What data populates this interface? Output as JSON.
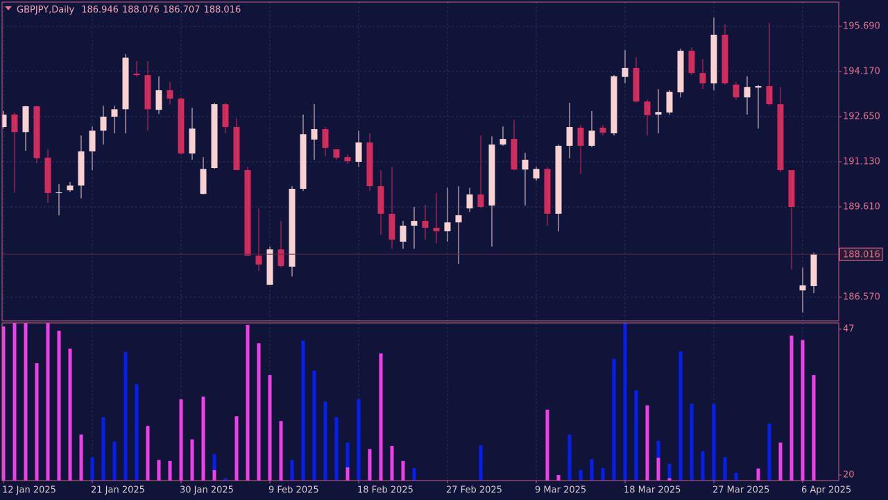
{
  "chart_data": [
    {
      "type": "candlestick",
      "title": "GBPJPY,Daily",
      "categories": [
        "12 Jan 2025",
        null,
        null,
        null,
        null,
        null,
        null,
        null,
        "21 Jan 2025",
        null,
        null,
        null,
        null,
        null,
        null,
        null,
        "30 Jan 2025",
        null,
        null,
        null,
        null,
        null,
        null,
        null,
        "9 Feb 2025",
        null,
        null,
        null,
        null,
        null,
        null,
        null,
        "18 Feb 2025",
        null,
        null,
        null,
        null,
        null,
        null,
        null,
        "27 Feb 2025",
        null,
        null,
        null,
        null,
        null,
        null,
        null,
        "9 Mar 2025",
        null,
        null,
        null,
        null,
        null,
        null,
        null,
        "18 Mar 2025",
        null,
        null,
        null,
        null,
        null,
        null,
        null,
        "27 Mar 2025",
        null,
        null,
        null,
        null,
        null,
        null,
        null,
        "6 Apr 2025",
        null
      ],
      "open": [
        192.3,
        192.72,
        192.13,
        193.0,
        191.27,
        190.08,
        190.17,
        190.33,
        191.48,
        192.18,
        192.65,
        192.9,
        194.1,
        194.05,
        192.88,
        193.54,
        193.26,
        191.41,
        190.05,
        190.92,
        193.07,
        192.3,
        190.85,
        187.97,
        186.99,
        188.18,
        187.6,
        190.22,
        191.88,
        192.23,
        191.55,
        191.29,
        191.13,
        191.78,
        190.31,
        189.38,
        188.44,
        188.98,
        189.14,
        188.91,
        188.79,
        189.09,
        189.56,
        190.03,
        189.66,
        191.71,
        191.9,
        190.87,
        190.57,
        190.89,
        189.38,
        191.67,
        192.28,
        191.67,
        192.28,
        192.09,
        193.99,
        194.29,
        193.16,
        192.72,
        192.79,
        193.47,
        194.87,
        194.12,
        193.77,
        195.41,
        193.73,
        193.3,
        193.63,
        193.68,
        193.07,
        190.85,
        186.8,
        186.946
      ],
      "high": [
        192.84,
        192.78,
        193.02,
        193.02,
        191.55,
        190.38,
        190.45,
        192.02,
        192.32,
        193.02,
        193.02,
        194.76,
        194.52,
        194.52,
        194.01,
        193.82,
        193.3,
        192.95,
        191.29,
        193.12,
        193.12,
        192.6,
        190.96,
        189.56,
        188.27,
        189.14,
        190.31,
        192.72,
        193.07,
        192.3,
        191.55,
        191.38,
        192.18,
        192.09,
        190.85,
        190.96,
        189.14,
        189.61,
        189.68,
        190.08,
        190.26,
        190.31,
        190.26,
        192.02,
        191.99,
        192.32,
        192.55,
        191.43,
        190.96,
        190.96,
        191.71,
        193.12,
        192.37,
        192.84,
        192.37,
        194.05,
        194.89,
        194.66,
        193.23,
        193.58,
        193.54,
        194.94,
        194.99,
        194.59,
        195.99,
        195.76,
        193.82,
        194.01,
        193.72,
        195.81,
        193.65,
        190.85,
        187.57,
        188.076
      ],
      "low": [
        192.25,
        190.08,
        191.5,
        191.08,
        189.75,
        189.33,
        190.12,
        189.9,
        190.85,
        191.71,
        192.09,
        192.09,
        194.0,
        192.18,
        192.74,
        193.07,
        191.38,
        191.2,
        190.03,
        190.89,
        192.09,
        190.85,
        187.97,
        187.46,
        187.02,
        187.57,
        187.27,
        190.15,
        191.2,
        191.32,
        191.2,
        191.06,
        190.96,
        190.15,
        188.67,
        188.2,
        188.2,
        188.2,
        188.51,
        188.39,
        188.44,
        187.69,
        189.44,
        189.56,
        188.27,
        191.67,
        190.85,
        189.66,
        190.5,
        188.98,
        188.79,
        191.25,
        190.73,
        191.62,
        192.02,
        192.02,
        193.77,
        193.12,
        192.02,
        192.09,
        192.72,
        193.3,
        194.05,
        193.58,
        193.54,
        193.73,
        193.23,
        192.72,
        192.25,
        193.02,
        190.78,
        187.5,
        186.05,
        186.707
      ],
      "close": [
        192.72,
        192.13,
        193.0,
        191.25,
        190.08,
        190.1,
        190.33,
        191.48,
        192.18,
        192.65,
        192.9,
        194.64,
        194.05,
        192.9,
        193.54,
        193.26,
        191.41,
        192.25,
        190.89,
        193.07,
        192.3,
        190.85,
        187.97,
        187.67,
        188.18,
        187.62,
        190.22,
        192.06,
        192.23,
        191.6,
        191.27,
        191.15,
        191.78,
        190.31,
        189.38,
        188.51,
        188.98,
        189.14,
        188.91,
        188.79,
        189.09,
        189.33,
        190.03,
        189.61,
        191.71,
        191.9,
        190.87,
        191.2,
        190.89,
        189.38,
        191.67,
        192.3,
        191.67,
        192.18,
        192.11,
        194.01,
        194.29,
        193.16,
        192.7,
        192.81,
        193.49,
        194.87,
        194.12,
        193.77,
        195.41,
        193.77,
        193.3,
        193.65,
        193.68,
        193.07,
        190.85,
        189.61,
        186.97,
        188.016
      ],
      "up_color": "#f8d2d2",
      "down_color": "#d02c5c",
      "ylim": [
        185.775,
        196.509
      ],
      "yticks": [
        {
          "value": 195.69,
          "label": "195.690"
        },
        {
          "value": 194.17,
          "label": "194.170"
        },
        {
          "value": 192.65,
          "label": "192.650"
        },
        {
          "value": 191.13,
          "label": "191.130"
        },
        {
          "value": 189.61,
          "label": "189.610"
        },
        {
          "value": 186.57,
          "label": "186.570"
        }
      ],
      "grid": true
    },
    {
      "type": "bar",
      "series": [
        {
          "color": "#0a1ef0",
          "values": [
            null,
            null,
            null,
            null,
            null,
            null,
            null,
            null,
            23.3,
            30.7,
            26.2,
            42.8,
            36.8,
            null,
            null,
            null,
            null,
            null,
            null,
            23.9,
            19.4,
            null,
            null,
            null,
            null,
            null,
            22.8,
            44.9,
            39.3,
            33.6,
            30.7,
            26.0,
            34.0,
            null,
            null,
            null,
            null,
            21.3,
            null,
            null,
            null,
            null,
            null,
            25.5,
            null,
            null,
            null,
            null,
            null,
            null,
            null,
            27.5,
            20.9,
            22.9,
            21.3,
            41.5,
            49,
            35.7,
            null,
            26.3,
            22.1,
            42.9,
            33.2,
            24.4,
            33.2,
            23.3,
            20.4,
            null,
            null,
            29.5,
            null,
            null,
            null,
            null
          ]
        },
        {
          "color": "#f040e8",
          "values": [
            47.5,
            49,
            49,
            40.7,
            49,
            46.7,
            43.4,
            27.5,
            null,
            null,
            null,
            null,
            null,
            29.1,
            22.8,
            22.6,
            34.0,
            26.6,
            34.5,
            20.9,
            null,
            30.9,
            47.8,
            44.4,
            38.5,
            30.0,
            null,
            null,
            null,
            null,
            null,
            21.4,
            null,
            24.8,
            42.5,
            25.4,
            22.6,
            null,
            null,
            null,
            null,
            null,
            null,
            null,
            null,
            null,
            null,
            null,
            null,
            32.1,
            20.0,
            null,
            null,
            null,
            null,
            null,
            null,
            null,
            32.9,
            23.2,
            19.4,
            null,
            null,
            null,
            null,
            null,
            null,
            null,
            21.2,
            null,
            26.0,
            45.8,
            45.0,
            38.5
          ]
        }
      ],
      "ylim": [
        18.97,
        48.16
      ],
      "yticks": [
        20,
        47
      ]
    }
  ]
}
